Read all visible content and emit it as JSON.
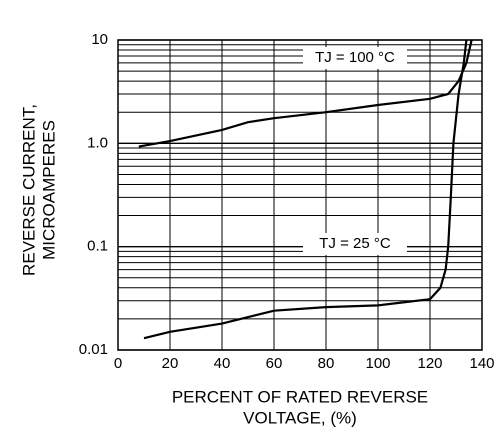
{
  "chart_data": {
    "type": "line",
    "xlabel": [
      "PERCENT OF RATED REVERSE",
      "VOLTAGE, (%)"
    ],
    "ylabel": [
      "REVERSE CURRENT,",
      "MICROAMPERES"
    ],
    "log_y": true,
    "grid": true,
    "color": "#000000",
    "xlim": [
      0,
      140
    ],
    "xticks": [
      0,
      20,
      40,
      60,
      80,
      100,
      120,
      140
    ],
    "ylim": [
      0.01,
      10
    ],
    "yticks": [
      {
        "value": 0.01,
        "label": "0.01"
      },
      {
        "value": 0.1,
        "label": "0.1"
      },
      {
        "value": 1,
        "label": "1.0"
      },
      10
    ],
    "y_minor_ticks": [
      0.02,
      0.03,
      0.04,
      0.05,
      0.06,
      0.07,
      0.08,
      0.09,
      0.2,
      0.3,
      0.4,
      0.5,
      0.6,
      0.7,
      0.8,
      0.9,
      2,
      3,
      4,
      5,
      6,
      7,
      8,
      9
    ],
    "series": [
      {
        "name": "TJ = 100 °C",
        "color": "#000000",
        "x": [
          8,
          20,
          40,
          50,
          60,
          80,
          100,
          120,
          127,
          131,
          134,
          136
        ],
        "values": [
          0.93,
          1.05,
          1.35,
          1.6,
          1.75,
          2.0,
          2.35,
          2.7,
          3.0,
          4,
          6,
          10
        ]
      },
      {
        "name": "TJ = 25 °C",
        "color": "#000000",
        "x": [
          10,
          20,
          40,
          60,
          80,
          100,
          120,
          124,
          126,
          127,
          128,
          129,
          131,
          133,
          134
        ],
        "values": [
          0.013,
          0.015,
          0.018,
          0.024,
          0.026,
          0.027,
          0.031,
          0.04,
          0.06,
          0.1,
          0.3,
          1,
          3,
          6,
          10
        ]
      }
    ]
  }
}
